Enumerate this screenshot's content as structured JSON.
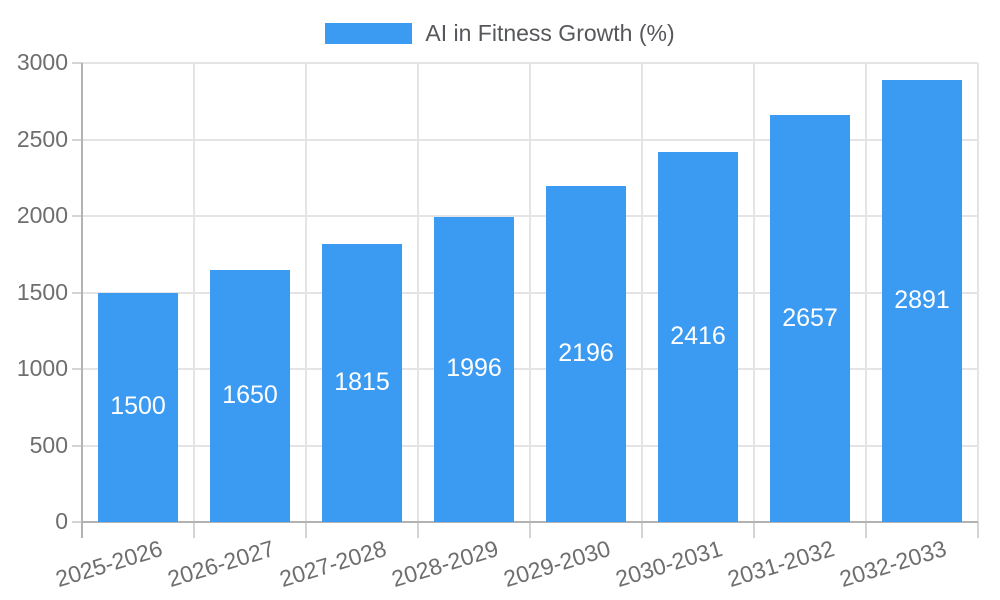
{
  "legend": {
    "label": "AI in Fitness Growth (%)"
  },
  "colors": {
    "bar": "#3B9AF2",
    "bar_label_text": "#ffffff",
    "grid_line": "#e4e4e4",
    "axis_line": "#b3b3b3",
    "tick_line": "#d4d4d4",
    "axis_text": "#6e6e6e",
    "legend_text": "#55575a"
  },
  "chart_data": {
    "type": "bar",
    "title": "",
    "xlabel": "",
    "ylabel": "",
    "categories": [
      "2025-2026",
      "2026-2027",
      "2027-2028",
      "2028-2029",
      "2029-2030",
      "2030-2031",
      "2031-2032",
      "2032-2033"
    ],
    "series": [
      {
        "name": "AI in Fitness Growth (%)",
        "values": [
          1500,
          1650,
          1815,
          1996,
          2196,
          2416,
          2657,
          2891
        ]
      }
    ],
    "ylim": [
      0,
      3000
    ],
    "yticks": [
      0,
      500,
      1000,
      1500,
      2000,
      2500,
      3000
    ],
    "grid": true,
    "legend_position": "top-center",
    "value_labels": "inside-center",
    "x_label_rotation_deg": -17
  }
}
